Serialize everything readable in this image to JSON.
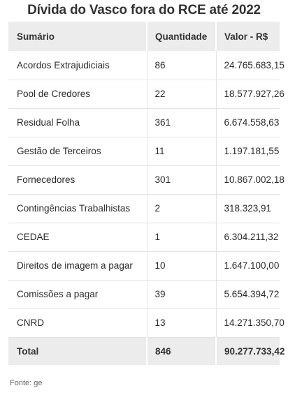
{
  "title": "Dívida do Vasco fora do RCE até 2022",
  "table": {
    "headers": [
      "Sumário",
      "Quantidade",
      "Valor - R$"
    ],
    "rows": [
      {
        "label": "Acordos Extrajudiciais",
        "quantity": "86",
        "value": "24.765.683,15"
      },
      {
        "label": "Pool de Credores",
        "quantity": "22",
        "value": "18.577.927,26"
      },
      {
        "label": "Residual Folha",
        "quantity": "361",
        "value": "6.674.558,63"
      },
      {
        "label": "Gestão de Terceiros",
        "quantity": "11",
        "value": "1.197.181,55"
      },
      {
        "label": "Fornecedores",
        "quantity": "301",
        "value": "10.867.002,18"
      },
      {
        "label": "Contingências Trabalhistas",
        "quantity": "2",
        "value": "318.323,91"
      },
      {
        "label": "CEDAE",
        "quantity": "1",
        "value": "6.304.211,32"
      },
      {
        "label": "Direitos de imagem a pagar",
        "quantity": "10",
        "value": "1.647.100,00"
      },
      {
        "label": "Comissões a pagar",
        "quantity": "39",
        "value": "5.654.394,72"
      },
      {
        "label": "CNRD",
        "quantity": "13",
        "value": "14.271.350,70"
      }
    ],
    "total": {
      "label": "Total",
      "quantity": "846",
      "value": "90.277.733,42"
    }
  },
  "source": "Fonte: ge"
}
